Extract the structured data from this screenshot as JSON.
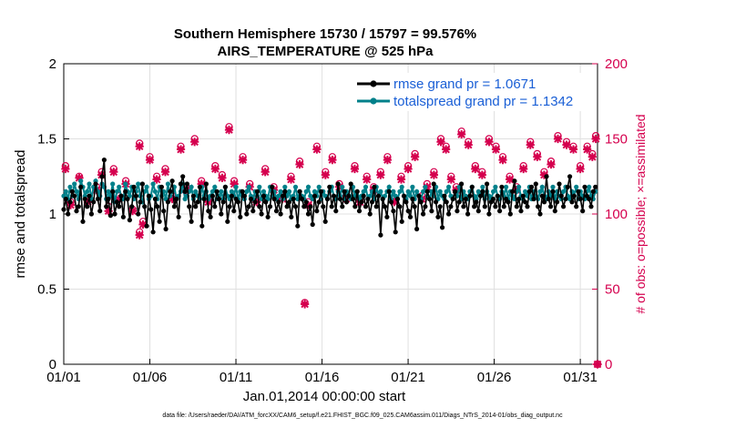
{
  "chart_data": {
    "type": "line",
    "title": "Southern Hemisphere 15730 / 15797 = 99.576%",
    "subtitle": "AIRS_TEMPERATURE @ 525 hPa",
    "xlabel": "Jan.01,2014 00:00:00 start",
    "ylabel": "rmse and totalspread",
    "ylabel_right": "# of obs: o=possible; ×=assimilated",
    "footnote": "data file: /Users/raeder/DAI/ATM_forcXX/CAM6_setup/f.e21.FHIST_BGC.f09_025.CAM6assim.011/Diags_NTrS_2014-01/obs_diag_output.nc",
    "xlim": [
      1,
      32
    ],
    "ylim": [
      0,
      2
    ],
    "ylim_right": [
      0,
      200
    ],
    "xticks": [
      1,
      6,
      11,
      16,
      21,
      26,
      31
    ],
    "xtick_labels": [
      "01/01",
      "01/06",
      "01/11",
      "01/16",
      "01/21",
      "01/26",
      "01/31"
    ],
    "yticks": [
      0,
      0.5,
      1,
      1.5,
      2
    ],
    "ytick_labels": [
      "0",
      "0.5",
      "1",
      "1.5",
      "2"
    ],
    "yticks_right": [
      0,
      50,
      100,
      150,
      200
    ],
    "ytick_labels_right": [
      "0",
      "50",
      "100",
      "150",
      "200"
    ],
    "grid": true,
    "legend_position": "top-right",
    "colors": {
      "rmse": "#000000",
      "spread": "#00808a",
      "obs": "#d5004e",
      "legend_text": "#1a5fd6",
      "grid": "#e0e0e0"
    },
    "series": [
      {
        "name": "rmse grand pr = 1.0671",
        "values": [
          1.03,
          1.1,
          1.0,
          1.08,
          1.15,
          1.12,
          1.02,
          1.05,
          1.18,
          0.95,
          1.1,
          1.05,
          1.12,
          1.0,
          1.08,
          1.2,
          1.1,
          1.02,
          1.25,
          1.36,
          1.05,
          1.1,
          0.99,
          1.15,
          1.0,
          1.08,
          1.05,
          1.12,
          0.98,
          1.15,
          1.1,
          0.96,
          1.05,
          1.18,
          1.12,
          1.0,
          1.08,
          1.2,
          1.05,
          0.92,
          1.12,
          1.03,
          0.88,
          1.1,
          1.05,
          0.95,
          1.18,
          1.02,
          0.9,
          1.08,
          1.15,
          1.22,
          1.05,
          1.1,
          0.98,
          1.2,
          1.25,
          1.15,
          1.2,
          1.05,
          0.95,
          1.12,
          1.05,
          1.08,
          1.18,
          0.92,
          1.1,
          1.2,
          1.02,
          0.98,
          1.12,
          1.05,
          1.15,
          1.1,
          1.0,
          1.08,
          1.18,
          0.95,
          1.05,
          1.12,
          1.02,
          1.1,
          1.08,
          0.98,
          1.15,
          1.12,
          1.0,
          1.05,
          1.1,
          1.02,
          1.08,
          1.15,
          1.05,
          1.0,
          1.12,
          1.08,
          0.98,
          1.05,
          1.18,
          1.1,
          1.02,
          1.08,
          1.0,
          1.12,
          1.15,
          1.05,
          1.08,
          0.98,
          1.1,
          1.05,
          0.92,
          1.15,
          1.1,
          1.05,
          1.08,
          1.0,
          1.05,
          0.93,
          1.12,
          1.02,
          1.08,
          1.15,
          1.05,
          0.95,
          1.1,
          1.18,
          1.05,
          1.12,
          1.02,
          1.2,
          1.1,
          1.05,
          1.15,
          1.08,
          1.12,
          1.2,
          1.1,
          1.05,
          1.15,
          1.02,
          1.08,
          1.12,
          1.05,
          1.1,
          1.0,
          1.08,
          1.18,
          1.05,
          1.12,
          0.86,
          1.1,
          1.05,
          0.98,
          1.15,
          1.08,
          1.02,
          0.88,
          1.1,
          1.05,
          0.95,
          1.12,
          1.08,
          1.02,
          0.98,
          1.1,
          1.05,
          0.9,
          1.12,
          1.08,
          1.0,
          1.05,
          1.15,
          1.1,
          1.02,
          1.2,
          1.08,
          0.98,
          1.05,
          0.91,
          1.12,
          1.08,
          1.0,
          1.05,
          1.1,
          1.15,
          1.02,
          1.08,
          1.2,
          1.05,
          1.1,
          1.0,
          1.12,
          1.18,
          1.05,
          1.08,
          1.02,
          1.12,
          1.15,
          1.05,
          1.2,
          1.0,
          1.08,
          1.1,
          1.05,
          1.12,
          1.02,
          1.18,
          1.05,
          1.1,
          1.08,
          1.0,
          1.15,
          1.22,
          1.05,
          1.1,
          1.02,
          1.12,
          1.08,
          1.05,
          1.15,
          1.18,
          1.1,
          1.2,
          1.05,
          1.0,
          1.12,
          1.08,
          1.25,
          1.1,
          1.05,
          1.15,
          1.02,
          1.08,
          1.2,
          1.12,
          1.05,
          1.1,
          1.18,
          1.25,
          1.08,
          1.12,
          1.05,
          1.15,
          1.1,
          1.02,
          1.18,
          1.12,
          1.1,
          1.05,
          1.15,
          1.18
        ]
      },
      {
        "name": "totalspread grand pr = 1.1342",
        "values": [
          1.12,
          1.15,
          1.1,
          1.18,
          1.12,
          1.2,
          1.15,
          1.1,
          1.22,
          1.18,
          1.12,
          1.15,
          1.2,
          1.1,
          1.18,
          1.22,
          1.15,
          1.12,
          1.2,
          1.18,
          1.1,
          1.15,
          1.12,
          1.2,
          1.08,
          1.15,
          1.18,
          1.12,
          1.1,
          1.2,
          1.15,
          1.12,
          1.18,
          1.1,
          1.15,
          1.2,
          1.12,
          1.08,
          1.15,
          1.18,
          1.1,
          1.12,
          1.2,
          1.15,
          1.1,
          1.18,
          1.12,
          1.15,
          1.1,
          1.2,
          1.12,
          1.15,
          1.18,
          1.1,
          1.12,
          1.15,
          1.2,
          1.1,
          1.12,
          1.15,
          1.18,
          1.1,
          1.15,
          1.12,
          1.1,
          1.18,
          1.12,
          1.15,
          1.1,
          1.12,
          1.15,
          1.18,
          1.1,
          1.12,
          1.15,
          1.1,
          1.18,
          1.12,
          1.1,
          1.15,
          1.12,
          1.18,
          1.1,
          1.15,
          1.12,
          1.1,
          1.15,
          1.18,
          1.12,
          1.1,
          1.15,
          1.12,
          1.18,
          1.1,
          1.15,
          1.12,
          1.1,
          1.18,
          1.12,
          1.15,
          1.1,
          1.12,
          1.15,
          1.1,
          1.18,
          1.12,
          1.15,
          1.1,
          1.12,
          1.18,
          1.1,
          1.15,
          1.12,
          1.1,
          1.15,
          1.18,
          1.12,
          1.1,
          1.15,
          1.12,
          1.18,
          1.1,
          1.15,
          1.12,
          1.1,
          1.15,
          1.18,
          1.12,
          1.1,
          1.15,
          1.12,
          1.18,
          1.1,
          1.15,
          1.12,
          1.1,
          1.18,
          1.12,
          1.15,
          1.1,
          1.12,
          1.15,
          1.18,
          1.1,
          1.12,
          1.15,
          1.1,
          1.18,
          1.12,
          1.15,
          1.1,
          1.12,
          1.15,
          1.18,
          1.1,
          1.15,
          1.12,
          1.1,
          1.15,
          1.18,
          1.12,
          1.1,
          1.15,
          1.12,
          1.18,
          1.1,
          1.15,
          1.12,
          1.1,
          1.15,
          1.18,
          1.12,
          1.1,
          1.15,
          1.12,
          1.18,
          1.1,
          1.15,
          1.12,
          1.1,
          1.15,
          1.18,
          1.12,
          1.1,
          1.15,
          1.12,
          1.18,
          1.1,
          1.15,
          1.12,
          1.1,
          1.15,
          1.18,
          1.12,
          1.1,
          1.15,
          1.12,
          1.18,
          1.1,
          1.15,
          1.12,
          1.1,
          1.15,
          1.18,
          1.12,
          1.1,
          1.15,
          1.12,
          1.18,
          1.1,
          1.15,
          1.12,
          1.1,
          1.15,
          1.18,
          1.12,
          1.1,
          1.15,
          1.12,
          1.18,
          1.1,
          1.15,
          1.12,
          1.1,
          1.15,
          1.18,
          1.12,
          1.1,
          1.15,
          1.12,
          1.18,
          1.1,
          1.15,
          1.12,
          1.1,
          1.15,
          1.18,
          1.12,
          1.1,
          1.15,
          1.12,
          1.18,
          1.1,
          1.15,
          1.12,
          1.1,
          1.15,
          1.18,
          1.12,
          1.1,
          1.15
        ]
      }
    ],
    "obs_x": [
      1.1,
      1.4,
      1.9,
      2.4,
      2.9,
      3.2,
      3.6,
      3.9,
      4.2,
      4.6,
      5.0,
      5.4,
      5.6,
      6.0,
      6.4,
      6.9,
      7.3,
      7.8,
      8.1,
      8.6,
      9.0,
      9.4,
      9.8,
      10.2,
      10.6,
      10.9,
      11.4,
      11.8,
      12.2,
      12.7,
      13.2,
      13.7,
      14.2,
      14.7,
      15.2,
      15.7,
      16.2,
      16.6,
      17.0,
      17.4,
      17.9,
      18.2,
      18.6,
      19.0,
      19.4,
      19.8,
      20.2,
      20.6,
      21.0,
      21.4,
      21.8,
      22.1,
      22.5,
      22.9,
      23.2,
      23.5,
      23.8,
      24.1,
      24.5,
      24.9,
      25.3,
      25.7,
      26.1,
      26.5,
      26.9,
      27.3,
      27.7,
      28.1,
      28.5,
      28.9,
      29.3,
      29.7,
      30.2,
      30.6,
      31.0,
      31.4,
      31.7,
      31.9
    ],
    "obs_possible": [
      132,
      108,
      125,
      110,
      118,
      128,
      105,
      130,
      112,
      122,
      103,
      147,
      95,
      138,
      125,
      130,
      112,
      145,
      118,
      150,
      122,
      110,
      132,
      126,
      158,
      122,
      138,
      120,
      110,
      130,
      118,
      112,
      125,
      135,
      108,
      145,
      128,
      138,
      120,
      112,
      132,
      110,
      125,
      118,
      128,
      138,
      110,
      125,
      132,
      140,
      112,
      120,
      128,
      150,
      145,
      125,
      118,
      155,
      148,
      132,
      128,
      150,
      145,
      138,
      125,
      118,
      132,
      148,
      140,
      128,
      135,
      152,
      148,
      145,
      132,
      145,
      140,
      152
    ],
    "obs_assimilated": [
      130,
      106,
      124,
      108,
      116,
      126,
      102,
      128,
      110,
      120,
      102,
      145,
      93,
      136,
      123,
      128,
      110,
      143,
      116,
      148,
      120,
      108,
      130,
      124,
      156,
      120,
      136,
      118,
      108,
      128,
      116,
      110,
      123,
      133,
      106,
      143,
      126,
      136,
      118,
      110,
      130,
      108,
      123,
      116,
      126,
      136,
      108,
      123,
      130,
      138,
      110,
      118,
      126,
      148,
      143,
      123,
      116,
      153,
      146,
      130,
      126,
      148,
      143,
      136,
      123,
      116,
      130,
      146,
      138,
      126,
      133,
      150,
      146,
      143,
      130,
      143,
      138,
      150
    ],
    "obs_extra": [
      {
        "x": 5.4,
        "possible": 88,
        "assimilated": 86
      },
      {
        "x": 15.0,
        "possible": 41,
        "assimilated": 40
      },
      {
        "x": 32.0,
        "possible": 0,
        "assimilated": 0
      }
    ]
  }
}
